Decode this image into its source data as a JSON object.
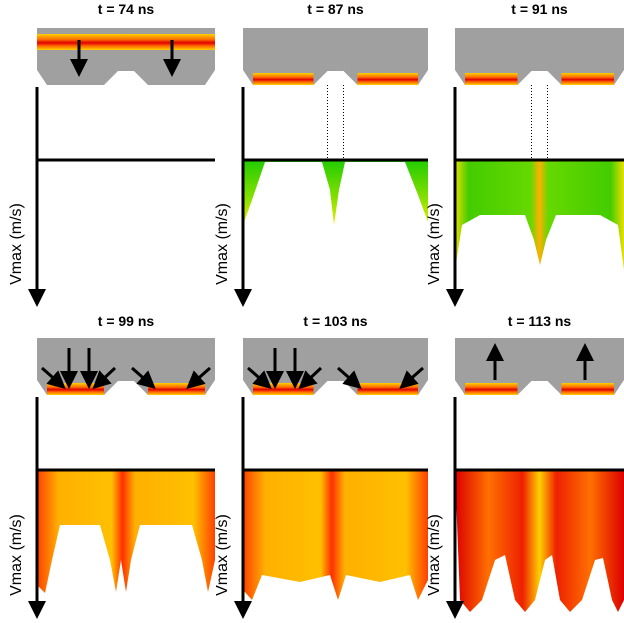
{
  "panels": [
    {
      "title": "t = 74 ns",
      "y_label": "Vmax (m/s)"
    },
    {
      "title": "t = 87 ns",
      "y_label": "Vmax (m/s)"
    },
    {
      "title": "t = 91 ns",
      "y_label": "Vmax (m/s)"
    },
    {
      "title": "t = 99 ns",
      "y_label": "Vmax (m/s)"
    },
    {
      "title": "t = 103 ns",
      "y_label": "Vmax (m/s)"
    },
    {
      "title": "t = 113 ns",
      "y_label": "Vmax (m/s)"
    }
  ]
}
